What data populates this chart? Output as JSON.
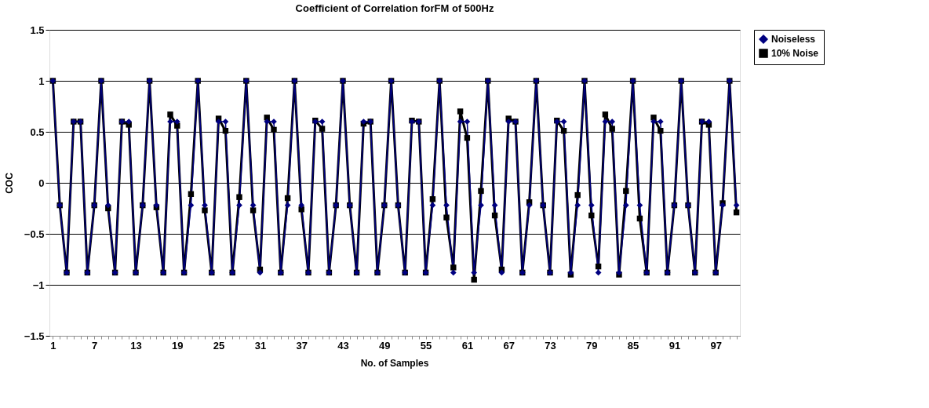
{
  "chart_data": {
    "type": "line",
    "title": "Coefficient of Correlation forFM of 500Hz",
    "xlabel": "No. of Samples",
    "ylabel": "COC",
    "categories": [
      "1",
      null,
      null,
      null,
      null,
      null,
      "7",
      null,
      null,
      null,
      null,
      null,
      "13",
      null,
      null,
      null,
      null,
      null,
      "19",
      null,
      null,
      null,
      null,
      null,
      "25",
      null,
      null,
      null,
      null,
      null,
      "31",
      null,
      null,
      null,
      null,
      null,
      "37",
      null,
      null,
      null,
      null,
      null,
      "43",
      null,
      null,
      null,
      null,
      null,
      "49",
      null,
      null,
      null,
      null,
      null,
      "55",
      null,
      null,
      null,
      null,
      null,
      "61",
      null,
      null,
      null,
      null,
      null,
      "67",
      null,
      null,
      null,
      null,
      null,
      "73",
      null,
      null,
      null,
      null,
      null,
      "79",
      null,
      null,
      null,
      null,
      null,
      "85",
      null,
      null,
      null,
      null,
      null,
      "91",
      null,
      null,
      null,
      null,
      null,
      "97",
      null,
      null,
      null
    ],
    "series": [
      {
        "name": "Noiseless",
        "color": "#000080",
        "marker": "diamond",
        "values": [
          1,
          -0.22,
          -0.88,
          0.6,
          0.6,
          -0.88,
          -0.22,
          1,
          -0.22,
          -0.88,
          0.6,
          0.6,
          -0.88,
          -0.22,
          1,
          -0.22,
          -0.88,
          0.6,
          0.6,
          -0.88,
          -0.22,
          1,
          -0.22,
          -0.88,
          0.6,
          0.6,
          -0.88,
          -0.22,
          1,
          -0.22,
          -0.88,
          0.6,
          0.6,
          -0.88,
          -0.22,
          1,
          -0.22,
          -0.88,
          0.6,
          0.6,
          -0.88,
          -0.22,
          1,
          -0.22,
          -0.88,
          0.6,
          0.6,
          -0.88,
          -0.22,
          1,
          -0.22,
          -0.88,
          0.6,
          0.6,
          -0.88,
          -0.22,
          1,
          -0.22,
          -0.88,
          0.6,
          0.6,
          -0.88,
          -0.22,
          1,
          -0.22,
          -0.88,
          0.6,
          0.6,
          -0.88,
          -0.22,
          1,
          -0.22,
          -0.88,
          0.6,
          0.6,
          -0.88,
          -0.22,
          1,
          -0.22,
          -0.88,
          0.6,
          0.6,
          -0.88,
          -0.22,
          1,
          -0.22,
          -0.88,
          0.6,
          0.6,
          -0.88,
          -0.22,
          1,
          -0.22,
          -0.88,
          0.6,
          0.6,
          -0.88,
          -0.22,
          1,
          -0.22
        ]
      },
      {
        "name": "10% Noise",
        "color": "#000000",
        "marker": "square",
        "values": [
          1,
          -0.22,
          -0.88,
          0.6,
          0.6,
          -0.88,
          -0.22,
          1,
          -0.25,
          -0.88,
          0.6,
          0.57,
          -0.88,
          -0.22,
          1,
          -0.24,
          -0.88,
          0.67,
          0.56,
          -0.88,
          -0.11,
          1,
          -0.27,
          -0.88,
          0.63,
          0.51,
          -0.88,
          -0.14,
          1,
          -0.27,
          -0.85,
          0.64,
          0.52,
          -0.88,
          -0.15,
          1,
          -0.26,
          -0.88,
          0.61,
          0.53,
          -0.88,
          -0.22,
          1,
          -0.22,
          -0.88,
          0.58,
          0.6,
          -0.88,
          -0.22,
          1,
          -0.22,
          -0.88,
          0.61,
          0.6,
          -0.88,
          -0.16,
          1,
          -0.34,
          -0.83,
          0.7,
          0.44,
          -0.95,
          -0.08,
          1,
          -0.32,
          -0.85,
          0.63,
          0.6,
          -0.88,
          -0.19,
          1,
          -0.22,
          -0.88,
          0.61,
          0.51,
          -0.9,
          -0.12,
          1,
          -0.32,
          -0.82,
          0.67,
          0.53,
          -0.9,
          -0.08,
          1,
          -0.35,
          -0.88,
          0.64,
          0.51,
          -0.88,
          -0.22,
          1,
          -0.22,
          -0.88,
          0.6,
          0.57,
          -0.88,
          -0.2,
          1,
          -0.29
        ]
      }
    ],
    "ylim": [
      -1.5,
      1.5
    ],
    "yticks": [
      -1.5,
      -1,
      -0.5,
      0,
      0.5,
      1,
      1.5
    ],
    "grid": "y",
    "legend": "right",
    "line_style": "solid"
  }
}
